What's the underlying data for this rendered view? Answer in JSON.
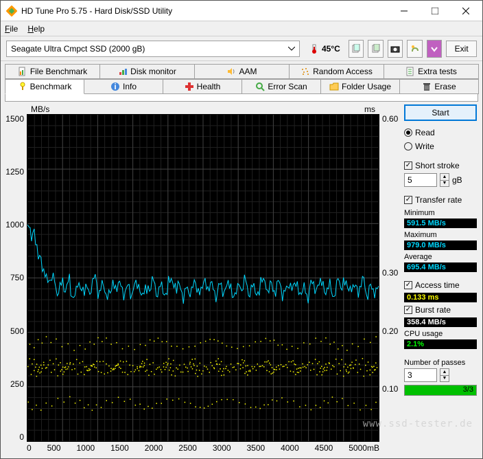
{
  "window": {
    "title": "HD Tune Pro 5.75 - Hard Disk/SSD Utility"
  },
  "menu": {
    "file": "File",
    "help": "Help"
  },
  "toolbar": {
    "drive": "Seagate Ultra Cmpct SSD (2000 gB)",
    "temp": "45°C",
    "exit": "Exit"
  },
  "tabs_top": [
    {
      "label": "File Benchmark"
    },
    {
      "label": "Disk monitor"
    },
    {
      "label": "AAM"
    },
    {
      "label": "Random Access"
    },
    {
      "label": "Extra tests"
    }
  ],
  "tabs_bottom": [
    {
      "label": "Benchmark"
    },
    {
      "label": "Info"
    },
    {
      "label": "Health"
    },
    {
      "label": "Error Scan"
    },
    {
      "label": "Folder Usage"
    },
    {
      "label": "Erase"
    }
  ],
  "chart": {
    "type": "line+scatter",
    "y_left_label": "MB/s",
    "y_right_label": "ms",
    "y_left_ticks": [
      "1500",
      "1250",
      "1000",
      "750",
      "500",
      "250",
      "0"
    ],
    "y_right_ticks": [
      "0.60",
      "",
      "",
      "0.30",
      "0.20",
      "0.10",
      ""
    ],
    "x_ticks": [
      "0",
      "500",
      "1000",
      "1500",
      "2000",
      "2500",
      "3000",
      "3500",
      "4000",
      "4500",
      "5000mB"
    ],
    "xlim": [
      0,
      5000
    ],
    "ylim_left": [
      0,
      1500
    ],
    "ylim_right": [
      0,
      0.6
    ],
    "background_color": "#000000",
    "grid_major_color": "#404040",
    "grid_minor_color": "#202020",
    "transfer_line_color": "#00d8ff",
    "access_point_color": "#ffff00",
    "transfer_series_y": [
      970,
      870,
      760,
      740,
      700,
      720,
      680,
      710,
      690,
      730,
      700,
      680,
      720,
      700,
      690,
      710,
      680,
      720,
      700,
      690,
      730,
      700,
      680,
      710,
      700,
      720,
      690,
      700,
      710,
      680,
      720,
      700,
      690,
      730,
      700,
      710,
      690,
      720,
      700,
      680,
      710,
      720,
      700,
      690,
      730,
      710,
      700,
      720,
      690,
      700
    ],
    "access_bands_ms": [
      0.133,
      0.14,
      0.18,
      0.07
    ],
    "access_density": 50
  },
  "side": {
    "start": "Start",
    "read": "Read",
    "write": "Write",
    "short_stroke": "Short stroke",
    "short_stroke_val": "5",
    "short_stroke_unit": "gB",
    "transfer_rate": "Transfer rate",
    "minimum_label": "Minimum",
    "minimum_val": "591.5 MB/s",
    "maximum_label": "Maximum",
    "maximum_val": "979.0 MB/s",
    "average_label": "Average",
    "average_val": "695.4 MB/s",
    "access_time": "Access time",
    "access_val": "0.133 ms",
    "burst_rate": "Burst rate",
    "burst_val": "358.4 MB/s",
    "cpu_label": "CPU usage",
    "cpu_val": "2.1%",
    "passes_label": "Number of passes",
    "passes_val": "3",
    "progress_text": "3/3"
  },
  "watermark": "www.ssd-tester.de"
}
